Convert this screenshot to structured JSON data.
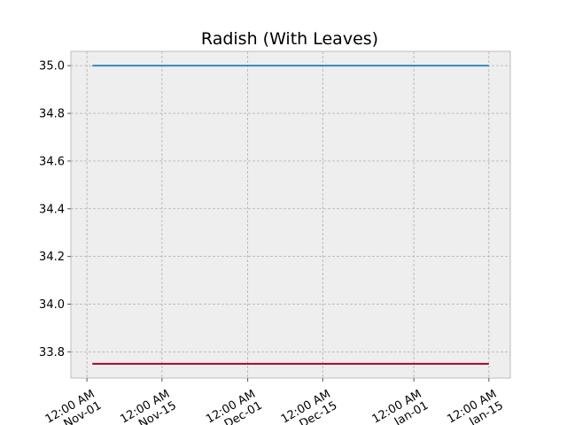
{
  "chart_data": {
    "type": "line",
    "title": "Radish (With Leaves)",
    "xlabel": "",
    "ylabel": "",
    "x": [
      "2021-11-02",
      "2022-01-15"
    ],
    "x_ticks": [
      {
        "date": "2021-11-01",
        "label": [
          "12:00 AM",
          "Nov-01"
        ]
      },
      {
        "date": "2021-11-15",
        "label": [
          "12:00 AM",
          "Nov-15"
        ]
      },
      {
        "date": "2021-12-01",
        "label": [
          "12:00 AM",
          "Dec-01"
        ]
      },
      {
        "date": "2021-12-15",
        "label": [
          "12:00 AM",
          "Dec-15"
        ]
      },
      {
        "date": "2022-01-01",
        "label": [
          "12:00 AM",
          "Jan-01"
        ]
      },
      {
        "date": "2022-01-15",
        "label": [
          "12:00 AM",
          "Jan-15"
        ]
      }
    ],
    "xlim": [
      "2021-10-29",
      "2022-01-19"
    ],
    "ylim": [
      33.69,
      35.06
    ],
    "y_ticks": [
      "33.8",
      "34.0",
      "34.2",
      "34.4",
      "34.6",
      "34.8",
      "35.0"
    ],
    "grid": true,
    "series": [
      {
        "values": [
          35.0,
          35.0
        ],
        "color": "#348abd"
      },
      {
        "values": [
          33.75,
          33.75
        ],
        "color": "#a60628"
      }
    ],
    "background": "#eeeeee"
  }
}
